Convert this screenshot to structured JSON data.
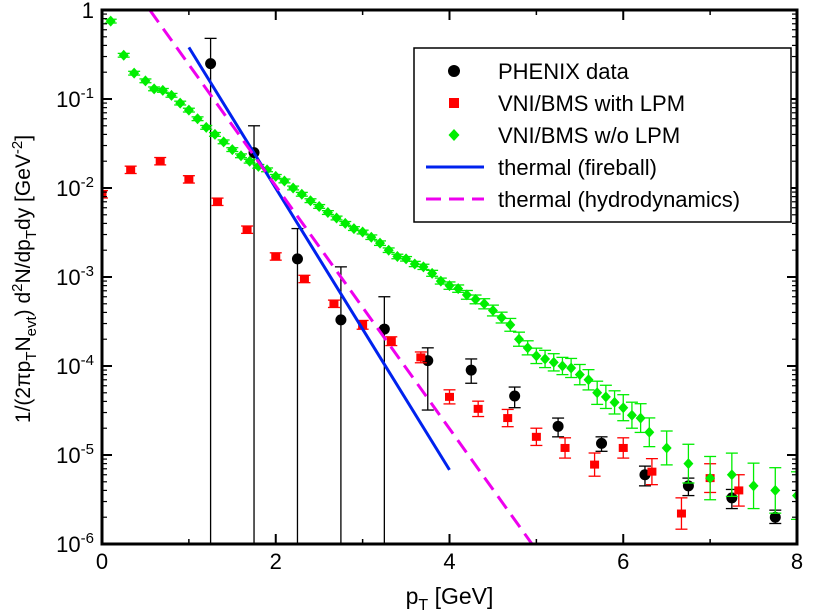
{
  "chart_data": {
    "type": "scatter",
    "xlabel": "p",
    "xlabel_sub": "T",
    "xlabel_unit": " [GeV]",
    "ylabel_parts": [
      "1/(2πp",
      "T",
      "N",
      "evt",
      ") d",
      "2",
      "N/dp",
      "T",
      "dy [GeV",
      "-2",
      "]"
    ],
    "xlim": [
      0,
      8
    ],
    "ylim": [
      1e-06,
      1
    ],
    "yscale": "log",
    "xticks": [
      0,
      2,
      4,
      6,
      8
    ],
    "xtick_labels": [
      "0",
      "2",
      "4",
      "6",
      "8"
    ],
    "yticks": [
      1,
      0.1,
      0.01,
      0.001,
      0.0001,
      1e-05,
      1e-06
    ],
    "ytick_labels": [
      {
        "base": "1",
        "exp": ""
      },
      {
        "base": "10",
        "exp": "-1"
      },
      {
        "base": "10",
        "exp": "-2"
      },
      {
        "base": "10",
        "exp": "-3"
      },
      {
        "base": "10",
        "exp": "-4"
      },
      {
        "base": "10",
        "exp": "-5"
      },
      {
        "base": "10",
        "exp": "-6"
      }
    ],
    "legend_position": "top-right",
    "series": [
      {
        "name": "PHENIX data",
        "kind": "points",
        "marker": "circle",
        "color": "#000000",
        "x": [
          1.25,
          1.75,
          2.25,
          2.75,
          3.25,
          3.75,
          4.25,
          4.75,
          5.25,
          5.75,
          6.25,
          6.75,
          7.25,
          7.75
        ],
        "y": [
          0.25,
          0.025,
          0.0016,
          0.00033,
          0.00026,
          0.000115,
          9e-05,
          4.6e-05,
          2.1e-05,
          1.35e-05,
          6e-06,
          4.5e-06,
          3.3e-06,
          2e-06
        ],
        "y_low": [
          1e-06,
          1e-06,
          1e-06,
          1e-06,
          1e-06,
          3.2e-05,
          6.4e-05,
          3.4e-05,
          1.6e-05,
          1.1e-05,
          4.5e-06,
          3.5e-06,
          2.5e-06,
          1.7e-06
        ],
        "y_high": [
          0.48,
          0.05,
          0.0035,
          0.0013,
          0.0006,
          0.00016,
          0.00012,
          5.8e-05,
          2.6e-05,
          1.6e-05,
          7.5e-06,
          5.5e-06,
          4.1e-06,
          2.4e-06
        ]
      },
      {
        "name": "VNI/BMS with LPM",
        "kind": "points",
        "marker": "square",
        "color": "#ff0000",
        "x": [
          0,
          0.33,
          0.67,
          1.0,
          1.33,
          1.67,
          2.0,
          2.33,
          2.67,
          3.0,
          3.33,
          3.67,
          4.0,
          4.33,
          4.67,
          5.0,
          5.33,
          5.67,
          6.0,
          6.33,
          6.67,
          7.0,
          7.33
        ],
        "y": [
          0.0085,
          0.016,
          0.02,
          0.0125,
          0.007,
          0.0034,
          0.0017,
          0.00095,
          0.0005,
          0.00029,
          0.00019,
          0.000125,
          4.5e-05,
          3.3e-05,
          2.6e-05,
          1.6e-05,
          1.2e-05,
          7.8e-06,
          1.2e-05,
          6.5e-06,
          2.2e-06,
          5.5e-06,
          4e-06
        ],
        "y_err": [
          0.1,
          0.1,
          0.1,
          0.1,
          0.1,
          0.1,
          0.1,
          0.1,
          0.1,
          0.12,
          0.12,
          0.15,
          0.2,
          0.22,
          0.25,
          0.25,
          0.3,
          0.35,
          0.3,
          0.4,
          0.5,
          0.45,
          0.5
        ]
      },
      {
        "name": "VNI/BMS w/o LPM",
        "kind": "points",
        "marker": "diamond",
        "color": "#00ee00",
        "x": [
          0.1,
          0.25,
          0.37,
          0.5,
          0.6,
          0.7,
          0.8,
          0.9,
          1.0,
          1.1,
          1.2,
          1.3,
          1.4,
          1.5,
          1.6,
          1.7,
          1.8,
          1.9,
          2.0,
          2.1,
          2.2,
          2.3,
          2.4,
          2.5,
          2.6,
          2.7,
          2.8,
          2.9,
          3.0,
          3.1,
          3.2,
          3.3,
          3.4,
          3.5,
          3.6,
          3.7,
          3.8,
          3.9,
          4.0,
          4.1,
          4.2,
          4.3,
          4.4,
          4.5,
          4.6,
          4.7,
          4.8,
          4.9,
          5.0,
          5.1,
          5.2,
          5.3,
          5.4,
          5.5,
          5.6,
          5.7,
          5.8,
          5.9,
          6.0,
          6.1,
          6.2,
          6.3,
          6.5,
          6.75,
          7.0,
          7.25,
          7.5,
          7.75,
          8.0
        ],
        "y": [
          0.75,
          0.31,
          0.195,
          0.16,
          0.13,
          0.125,
          0.11,
          0.09,
          0.075,
          0.06,
          0.048,
          0.04,
          0.033,
          0.027,
          0.023,
          0.02,
          0.0175,
          0.016,
          0.0135,
          0.012,
          0.01,
          0.0085,
          0.0072,
          0.0062,
          0.0053,
          0.0046,
          0.004,
          0.0035,
          0.0032,
          0.0028,
          0.0024,
          0.002,
          0.0017,
          0.0016,
          0.0014,
          0.0013,
          0.0011,
          0.0009,
          0.0008,
          0.00074,
          0.00063,
          0.00056,
          0.0005,
          0.00042,
          0.00035,
          0.00029,
          0.0002,
          0.00016,
          0.00013,
          0.00012,
          0.00011,
          0.0001,
          9.5e-05,
          8e-05,
          7e-05,
          5e-05,
          4.5e-05,
          3.9e-05,
          3.4e-05,
          2.8e-05,
          2.6e-05,
          1.8e-05,
          1.2e-05,
          8e-06,
          5.5e-06,
          6e-06,
          4.5e-06,
          4e-06,
          3.5e-06
        ],
        "y_err": [
          0.05,
          0.05,
          0.05,
          0.05,
          0.05,
          0.05,
          0.05,
          0.05,
          0.05,
          0.05,
          0.05,
          0.05,
          0.05,
          0.05,
          0.05,
          0.05,
          0.05,
          0.05,
          0.05,
          0.05,
          0.05,
          0.05,
          0.05,
          0.05,
          0.05,
          0.05,
          0.05,
          0.05,
          0.05,
          0.06,
          0.06,
          0.06,
          0.06,
          0.06,
          0.07,
          0.07,
          0.08,
          0.08,
          0.1,
          0.1,
          0.12,
          0.12,
          0.14,
          0.15,
          0.15,
          0.18,
          0.2,
          0.2,
          0.22,
          0.25,
          0.25,
          0.25,
          0.28,
          0.3,
          0.3,
          0.35,
          0.35,
          0.35,
          0.4,
          0.4,
          0.45,
          0.45,
          0.55,
          0.65,
          0.75,
          0.75,
          0.8,
          0.8,
          0.85
        ]
      },
      {
        "name": "thermal (fireball)",
        "kind": "line",
        "style": "solid",
        "color": "#0022ee",
        "x": [
          1.0,
          4.0
        ],
        "y": [
          0.38,
          6.8e-06
        ]
      },
      {
        "name": "thermal (hydrodynamics)",
        "kind": "line",
        "style": "dashed",
        "color": "#ee00ee",
        "x": [
          0.55,
          4.95
        ],
        "y": [
          1.0,
          1e-06
        ]
      }
    ]
  }
}
